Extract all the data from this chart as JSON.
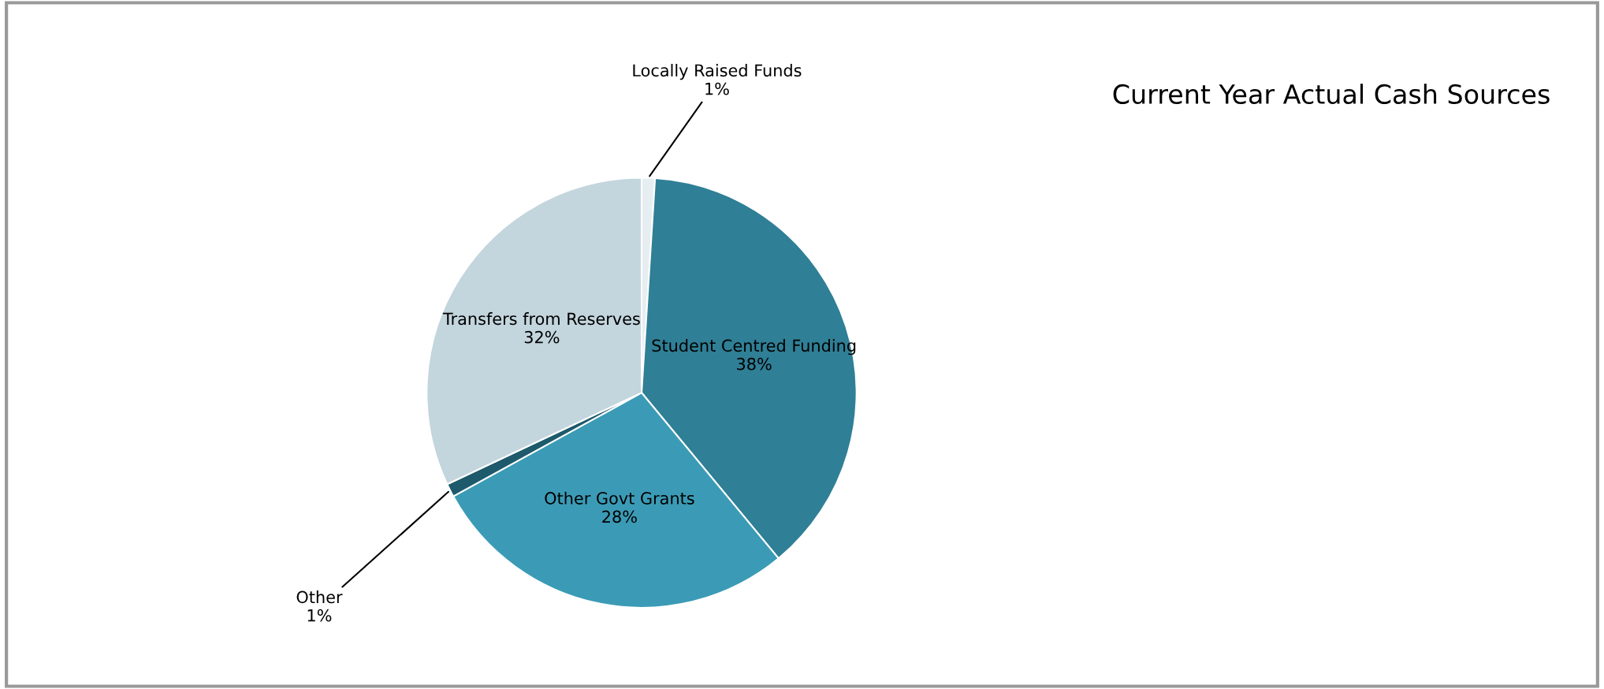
{
  "chart_data": {
    "type": "pie",
    "title": "Current Year Actual Cash Sources",
    "categories": [
      "Locally Raised Funds",
      "Student Centred Funding",
      "Other Govt Grants",
      "Other",
      "Transfers from Reserves"
    ],
    "values": [
      1,
      38,
      28,
      1,
      32
    ],
    "value_labels": [
      "1%",
      "38%",
      "28%",
      "1%",
      "32%"
    ],
    "colors": [
      "#e6eef1",
      "#2f7f96",
      "#3b9bb6",
      "#1d5a6b",
      "#c3d5dd"
    ],
    "legend": false
  }
}
